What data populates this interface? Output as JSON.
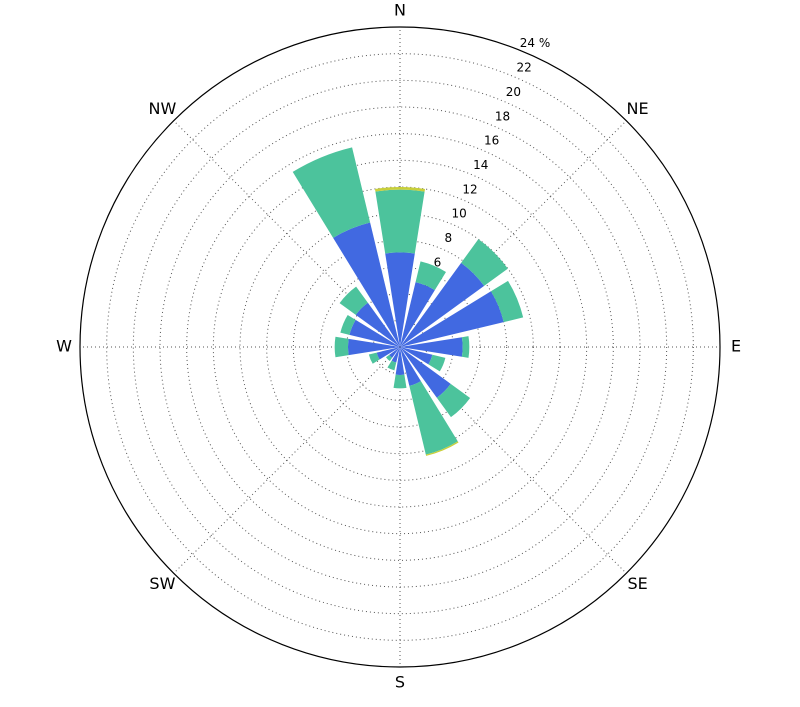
{
  "chart_data": {
    "type": "windrose",
    "categories": [
      "N",
      null,
      "NE",
      null,
      "E",
      null,
      "SE",
      null,
      "S",
      null,
      "SW",
      null,
      "W",
      null,
      "NW",
      null
    ],
    "series": [
      {
        "color": "#4169e1",
        "values": [
          7.1,
          5.0,
          7.8,
          8.0,
          4.7,
          2.5,
          4.7,
          3.0,
          2.1,
          1.2,
          1.0,
          1.8,
          3.9,
          3.9,
          4.1,
          9.6
        ]
      },
      {
        "color": "#4cc39c",
        "values": [
          4.7,
          1.6,
          2.2,
          1.5,
          0.5,
          1.0,
          1.8,
          5.3,
          1.0,
          0.6,
          0.3,
          0.6,
          1.0,
          0.7,
          1.5,
          5.8
        ]
      },
      {
        "color": "#c8cf3a",
        "values": [
          0.2,
          0,
          0,
          0,
          0,
          0,
          0,
          0.1,
          0,
          0,
          0,
          0,
          0,
          0,
          0,
          0
        ]
      }
    ],
    "ylim": [
      0,
      24
    ],
    "yticks": [
      2,
      4,
      6,
      8,
      10,
      12,
      14,
      16,
      18,
      20,
      22,
      {
        "value": 24,
        "label": "24 %"
      }
    ],
    "grid": true
  }
}
